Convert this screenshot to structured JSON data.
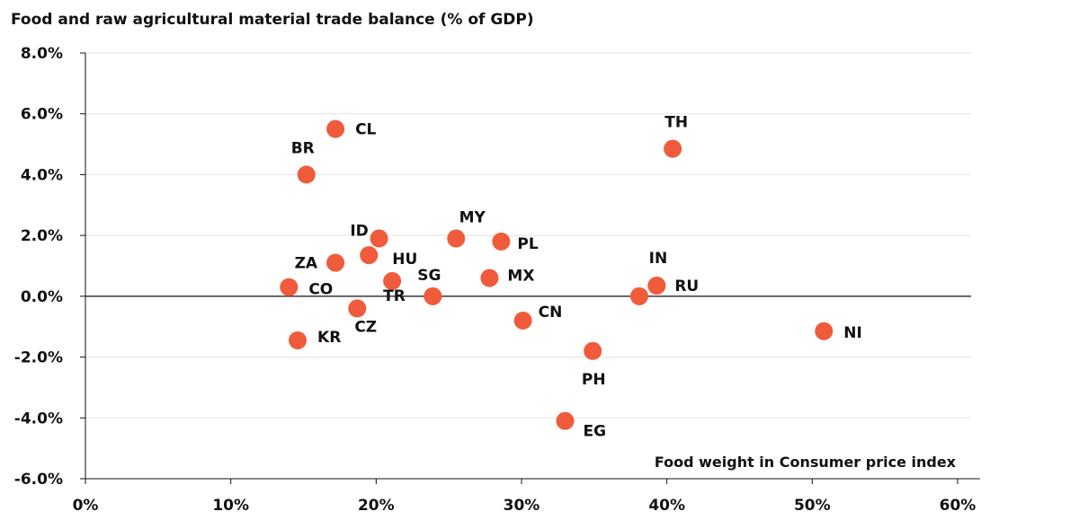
{
  "chart_data": {
    "type": "scatter",
    "title": "Food and raw agricultural material trade balance (% of GDP)",
    "xlabel": "Food weight in Consumer price index",
    "ylabel": "",
    "xlim": [
      0,
      60
    ],
    "ylim": [
      -6,
      8
    ],
    "xticks": [
      "0%",
      "10%",
      "20%",
      "30%",
      "40%",
      "50%",
      "60%"
    ],
    "yticks": [
      "8.0%",
      "6.0%",
      "4.0%",
      "2.0%",
      "0.0%",
      "-2.0%",
      "-4.0%",
      "-6.0%"
    ],
    "grid": "horizontal",
    "marker_color": "#ef5b3b",
    "points": [
      {
        "label": "CL",
        "x": 17.2,
        "y": 5.5
      },
      {
        "label": "BR",
        "x": 15.2,
        "y": 4.0
      },
      {
        "label": "TH",
        "x": 40.4,
        "y": 4.85
      },
      {
        "label": "ID",
        "x": 20.2,
        "y": 1.9
      },
      {
        "label": "HU",
        "x": 19.5,
        "y": 1.35
      },
      {
        "label": "MY",
        "x": 25.5,
        "y": 1.9
      },
      {
        "label": "PL",
        "x": 28.6,
        "y": 1.8
      },
      {
        "label": "ZA",
        "x": 17.2,
        "y": 1.1
      },
      {
        "label": "TR",
        "x": 21.1,
        "y": 0.5
      },
      {
        "label": "SG",
        "x": 23.9,
        "y": 0.0
      },
      {
        "label": "MX",
        "x": 27.8,
        "y": 0.6
      },
      {
        "label": "IN",
        "x": 38.1,
        "y": 0.0
      },
      {
        "label": "RU",
        "x": 39.3,
        "y": 0.35
      },
      {
        "label": "CO",
        "x": 14.0,
        "y": 0.3
      },
      {
        "label": "CZ",
        "x": 18.7,
        "y": -0.4
      },
      {
        "label": "KR",
        "x": 14.6,
        "y": -1.45
      },
      {
        "label": "CN",
        "x": 30.1,
        "y": -0.8
      },
      {
        "label": "PH",
        "x": 34.9,
        "y": -1.8
      },
      {
        "label": "EG",
        "x": 33.0,
        "y": -4.1
      },
      {
        "label": "NI",
        "x": 50.8,
        "y": -1.15
      }
    ]
  }
}
